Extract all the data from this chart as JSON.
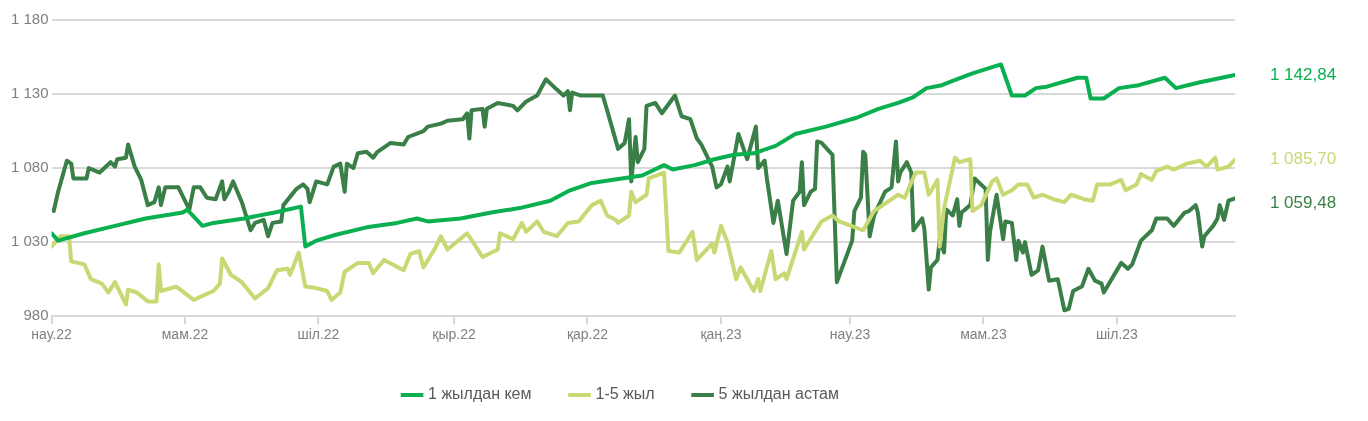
{
  "chart_data": {
    "type": "line",
    "xlim": [
      "2022-03-01",
      "2023-08-24"
    ],
    "xticks": [
      {
        "value": "2022-03-01",
        "label": "нау.22"
      },
      {
        "value": "2022-05-01",
        "label": "мам.22"
      },
      {
        "value": "2022-07-01",
        "label": "шіл.22"
      },
      {
        "value": "2022-09-01",
        "label": "қыр.22"
      },
      {
        "value": "2022-11-01",
        "label": "қар.22"
      },
      {
        "value": "2023-01-01",
        "label": "қаң.23"
      },
      {
        "value": "2023-03-01",
        "label": "нау.23"
      },
      {
        "value": "2023-05-01",
        "label": "мам.23"
      },
      {
        "value": "2023-07-01",
        "label": "шіл.23"
      }
    ],
    "ylim": [
      980,
      1180
    ],
    "yticks": [
      {
        "value": 980,
        "label": "980"
      },
      {
        "value": 1030,
        "label": "1 030"
      },
      {
        "value": 1080,
        "label": "1 080"
      },
      {
        "value": 1130,
        "label": "1 130"
      },
      {
        "value": 1180,
        "label": "1 180"
      }
    ],
    "grid": "y",
    "legend": "bottom",
    "marker": "none",
    "line_style": "solid",
    "annotations": [
      {
        "text": "1 142,84",
        "x": "2023-08-24",
        "y": 1142.84
      },
      {
        "text": "1 085,70",
        "x": "2023-08-24",
        "y": 1085.7
      },
      {
        "text": "1 059,48",
        "x": "2023-08-24",
        "y": 1059.48
      }
    ],
    "series": [
      {
        "name": "1 жылдан кем",
        "color": "#0ab04f",
        "x": [
          "2022-03-01",
          "2022-03-04",
          "2022-03-16",
          "2022-03-30",
          "2022-04-13",
          "2022-04-30",
          "2022-05-02",
          "2022-05-09",
          "2022-05-14",
          "2022-05-28",
          "2022-06-11",
          "2022-06-23",
          "2022-06-25",
          "2022-06-30",
          "2022-07-09",
          "2022-07-23",
          "2022-08-06",
          "2022-08-15",
          "2022-08-20",
          "2022-09-04",
          "2022-09-18",
          "2022-10-01",
          "2022-10-15",
          "2022-10-24",
          "2022-11-03",
          "2022-11-12",
          "2022-11-26",
          "2022-12-06",
          "2022-12-10",
          "2022-12-20",
          "2022-12-29",
          "2023-01-07",
          "2023-01-16",
          "2023-01-26",
          "2023-02-04",
          "2023-02-18",
          "2023-03-04",
          "2023-03-14",
          "2023-03-23",
          "2023-03-30",
          "2023-04-05",
          "2023-04-12",
          "2023-04-19",
          "2023-04-26",
          "2023-05-09",
          "2023-05-14",
          "2023-05-20",
          "2023-05-25",
          "2023-05-30",
          "2023-06-13",
          "2023-06-17",
          "2023-06-19",
          "2023-06-25",
          "2023-07-02",
          "2023-07-11",
          "2023-07-23",
          "2023-07-28",
          "2023-08-08",
          "2023-08-18",
          "2023-08-24"
        ],
        "values": [
          1036,
          1031,
          1036,
          1041,
          1046,
          1050,
          1052,
          1041,
          1043,
          1046,
          1050,
          1054,
          1027,
          1031,
          1035,
          1040,
          1043,
          1046,
          1044,
          1046,
          1050,
          1053,
          1058,
          1065,
          1070,
          1072,
          1075,
          1082,
          1079,
          1082,
          1086,
          1089,
          1090,
          1095,
          1103,
          1108,
          1114,
          1120,
          1124,
          1128,
          1134,
          1136,
          1140,
          1144,
          1150,
          1129,
          1129,
          1134,
          1135,
          1141,
          1141,
          1127,
          1127,
          1134,
          1136,
          1141,
          1134,
          1138,
          1141,
          1142.84
        ]
      },
      {
        "name": "1-5 жыл",
        "color": "#c8d872",
        "x": [
          "2022-03-01",
          "2022-03-05",
          "2022-03-09",
          "2022-03-10",
          "2022-03-16",
          "2022-03-19",
          "2022-03-24",
          "2022-03-27",
          "2022-03-30",
          "2022-04-04",
          "2022-04-05",
          "2022-04-09",
          "2022-04-14",
          "2022-04-18",
          "2022-04-19",
          "2022-04-20",
          "2022-04-27",
          "2022-05-05",
          "2022-05-14",
          "2022-05-17",
          "2022-05-18",
          "2022-05-22",
          "2022-05-27",
          "2022-06-02",
          "2022-06-08",
          "2022-06-12",
          "2022-06-17",
          "2022-06-18",
          "2022-06-22",
          "2022-06-25",
          "2022-06-30",
          "2022-07-05",
          "2022-07-07",
          "2022-07-11",
          "2022-07-13",
          "2022-07-19",
          "2022-07-24",
          "2022-07-26",
          "2022-07-31",
          "2022-08-09",
          "2022-08-12",
          "2022-08-16",
          "2022-08-18",
          "2022-08-23",
          "2022-08-26",
          "2022-08-29",
          "2022-09-07",
          "2022-09-14",
          "2022-09-21",
          "2022-09-22",
          "2022-09-28",
          "2022-10-02",
          "2022-10-04",
          "2022-10-09",
          "2022-10-12",
          "2022-10-18",
          "2022-10-23",
          "2022-10-28",
          "2022-11-03",
          "2022-11-07",
          "2022-11-10",
          "2022-11-14",
          "2022-11-15",
          "2022-11-20",
          "2022-11-21",
          "2022-11-23",
          "2022-11-28",
          "2022-11-29",
          "2022-12-06",
          "2022-12-08",
          "2022-12-13",
          "2022-12-19",
          "2022-12-21",
          "2022-12-28",
          "2022-12-29",
          "2023-01-01",
          "2023-01-04",
          "2023-01-08",
          "2023-01-10",
          "2023-01-16",
          "2023-01-18",
          "2023-01-19",
          "2023-01-24",
          "2023-01-26",
          "2023-01-30",
          "2023-01-31",
          "2023-02-07",
          "2023-02-08",
          "2023-02-16",
          "2023-02-21",
          "2023-02-24",
          "2023-03-07",
          "2023-03-12",
          "2023-03-23",
          "2023-03-26",
          "2023-03-31",
          "2023-04-04",
          "2023-04-06",
          "2023-04-10",
          "2023-04-11",
          "2023-04-13",
          "2023-04-18",
          "2023-04-20",
          "2023-04-25",
          "2023-04-26",
          "2023-04-30",
          "2023-05-05",
          "2023-05-07",
          "2023-05-10",
          "2023-05-14",
          "2023-05-17",
          "2023-05-21",
          "2023-05-24",
          "2023-05-28",
          "2023-06-02",
          "2023-06-07",
          "2023-06-10",
          "2023-06-16",
          "2023-06-20",
          "2023-06-22",
          "2023-06-28",
          "2023-07-03",
          "2023-07-05",
          "2023-07-10",
          "2023-07-12",
          "2023-07-17",
          "2023-07-19",
          "2023-07-24",
          "2023-07-27",
          "2023-08-02",
          "2023-08-08",
          "2023-08-11",
          "2023-08-15",
          "2023-08-16",
          "2023-08-21",
          "2023-08-24"
        ],
        "values": [
          1027,
          1034,
          1034,
          1017,
          1015,
          1005,
          1002,
          996,
          1003,
          988,
          998,
          996,
          990,
          990,
          1015,
          997,
          1000,
          991,
          997,
          1002,
          1019,
          1008,
          1003,
          992,
          999,
          1011,
          1012,
          1008,
          1023,
          1000,
          999,
          997,
          991,
          996,
          1010,
          1016,
          1016,
          1009,
          1018,
          1011,
          1022,
          1024,
          1013,
          1025,
          1034,
          1025,
          1036,
          1020,
          1025,
          1036,
          1032,
          1043,
          1037,
          1044,
          1037,
          1034,
          1043,
          1044,
          1055,
          1058,
          1048,
          1045,
          1043,
          1048,
          1064,
          1057,
          1062,
          1073,
          1077,
          1024,
          1023,
          1037,
          1018,
          1029,
          1023,
          1041,
          1030,
          1005,
          1013,
          997,
          1005,
          997,
          1024,
          1005,
          1009,
          1005,
          1037,
          1025,
          1044,
          1048,
          1044,
          1038,
          1051,
          1062,
          1060,
          1077,
          1077,
          1062,
          1072,
          1027,
          1053,
          1087,
          1084,
          1086,
          1051,
          1055,
          1071,
          1073,
          1062,
          1065,
          1069,
          1069,
          1060,
          1062,
          1059,
          1057,
          1062,
          1059,
          1058,
          1069,
          1069,
          1072,
          1065,
          1069,
          1076,
          1072,
          1078,
          1081,
          1079,
          1083,
          1085,
          1081,
          1087,
          1079,
          1081,
          1085.7
        ]
      },
      {
        "name": "5 жылдан астам",
        "color": "#3a7f47",
        "x": [
          "2022-03-02",
          "2022-03-04",
          "2022-03-08",
          "2022-03-10",
          "2022-03-11",
          "2022-03-17",
          "2022-03-18",
          "2022-03-23",
          "2022-03-28",
          "2022-03-30",
          "2022-03-31",
          "2022-04-04",
          "2022-04-05",
          "2022-04-08",
          "2022-04-11",
          "2022-04-14",
          "2022-04-17",
          "2022-04-19",
          "2022-04-20",
          "2022-04-22",
          "2022-04-28",
          "2022-05-03",
          "2022-05-05",
          "2022-05-08",
          "2022-05-11",
          "2022-05-15",
          "2022-05-18",
          "2022-05-19",
          "2022-05-21",
          "2022-05-23",
          "2022-05-27",
          "2022-05-31",
          "2022-06-02",
          "2022-06-06",
          "2022-06-08",
          "2022-06-10",
          "2022-06-14",
          "2022-06-15",
          "2022-06-21",
          "2022-06-24",
          "2022-06-26",
          "2022-06-27",
          "2022-06-30",
          "2022-07-05",
          "2022-07-08",
          "2022-07-11",
          "2022-07-13",
          "2022-07-14",
          "2022-07-17",
          "2022-07-19",
          "2022-07-23",
          "2022-07-26",
          "2022-07-28",
          "2022-08-03",
          "2022-08-09",
          "2022-08-11",
          "2022-08-18",
          "2022-08-20",
          "2022-08-26",
          "2022-08-29",
          "2022-09-05",
          "2022-09-07",
          "2022-09-08",
          "2022-09-09",
          "2022-09-14",
          "2022-09-15",
          "2022-09-16",
          "2022-09-21",
          "2022-09-28",
          "2022-09-30",
          "2022-10-04",
          "2022-10-09",
          "2022-10-13",
          "2022-10-18",
          "2022-10-21",
          "2022-10-23",
          "2022-10-24",
          "2022-10-25",
          "2022-10-29",
          "2022-11-01",
          "2022-11-06",
          "2022-11-08",
          "2022-11-10",
          "2022-11-15",
          "2022-11-18",
          "2022-11-20",
          "2022-11-21",
          "2022-11-23",
          "2022-11-24",
          "2022-11-27",
          "2022-11-28",
          "2022-12-02",
          "2022-12-05",
          "2022-12-11",
          "2022-12-14",
          "2022-12-18",
          "2022-12-21",
          "2022-12-23",
          "2022-12-28",
          "2022-12-30",
          "2023-01-01",
          "2023-01-04",
          "2023-01-05",
          "2023-01-09",
          "2023-01-13",
          "2023-01-17",
          "2023-01-18",
          "2023-01-21",
          "2023-01-22",
          "2023-01-25",
          "2023-01-27",
          "2023-01-31",
          "2023-02-03",
          "2023-02-06",
          "2023-02-07",
          "2023-02-08",
          "2023-02-11",
          "2023-02-13",
          "2023-02-14",
          "2023-02-16",
          "2023-02-21",
          "2023-02-23",
          "2023-03-02",
          "2023-03-03",
          "2023-03-06",
          "2023-03-07",
          "2023-03-08",
          "2023-03-10",
          "2023-03-12",
          "2023-03-17",
          "2023-03-20",
          "2023-03-22",
          "2023-03-23",
          "2023-03-24",
          "2023-03-27",
          "2023-03-29",
          "2023-03-30",
          "2023-04-03",
          "2023-04-04",
          "2023-04-06",
          "2023-04-07",
          "2023-04-10",
          "2023-04-11",
          "2023-04-13",
          "2023-04-14",
          "2023-04-17",
          "2023-04-19",
          "2023-04-20",
          "2023-04-21",
          "2023-04-25",
          "2023-04-27",
          "2023-05-02",
          "2023-05-03",
          "2023-05-04",
          "2023-05-07",
          "2023-05-10",
          "2023-05-11",
          "2023-05-14",
          "2023-05-16",
          "2023-05-17",
          "2023-05-19",
          "2023-05-20",
          "2023-05-23",
          "2023-05-26",
          "2023-05-28",
          "2023-05-31",
          "2023-06-04",
          "2023-06-07",
          "2023-06-09",
          "2023-06-11",
          "2023-06-15",
          "2023-06-18",
          "2023-06-21",
          "2023-06-24",
          "2023-06-25",
          "2023-07-03",
          "2023-07-06",
          "2023-07-08",
          "2023-07-12",
          "2023-07-17",
          "2023-07-19",
          "2023-07-24",
          "2023-07-27",
          "2023-08-01",
          "2023-08-03",
          "2023-08-06",
          "2023-08-07",
          "2023-08-09",
          "2023-08-10",
          "2023-08-14",
          "2023-08-16",
          "2023-08-17",
          "2023-08-19",
          "2023-08-21",
          "2023-08-24"
        ],
        "values": [
          1051,
          1064,
          1085,
          1083,
          1073,
          1073,
          1080,
          1077,
          1084,
          1081,
          1086,
          1087,
          1096,
          1081,
          1072,
          1055,
          1057,
          1067,
          1055,
          1067,
          1067,
          1052,
          1067,
          1067,
          1060,
          1059,
          1071,
          1059,
          1064,
          1071,
          1057,
          1038,
          1043,
          1045,
          1034,
          1043,
          1044,
          1055,
          1066,
          1069,
          1066,
          1057,
          1071,
          1069,
          1081,
          1083,
          1064,
          1083,
          1080,
          1090,
          1091,
          1087,
          1091,
          1097,
          1096,
          1101,
          1105,
          1108,
          1110,
          1112,
          1113,
          1117,
          1100,
          1119,
          1120,
          1108,
          1120,
          1124,
          1122,
          1119,
          1125,
          1129,
          1140,
          1133,
          1129,
          1132,
          1119,
          1131,
          1129,
          1129,
          1129,
          1129,
          1119,
          1093,
          1097,
          1113,
          1071,
          1101,
          1084,
          1093,
          1122,
          1124,
          1117,
          1129,
          1115,
          1113,
          1100,
          1096,
          1081,
          1067,
          1069,
          1081,
          1071,
          1103,
          1086,
          1108,
          1080,
          1085,
          1073,
          1043,
          1058,
          1022,
          1058,
          1064,
          1084,
          1055,
          1064,
          1066,
          1098,
          1097,
          1089,
          1003,
          1031,
          1051,
          1060,
          1091,
          1089,
          1034,
          1048,
          1064,
          1067,
          1098,
          1071,
          1077,
          1084,
          1077,
          1038,
          1046,
          1039,
          998,
          1013,
          1018,
          1032,
          1023,
          1052,
          1048,
          1059,
          1041,
          1050,
          1055,
          1073,
          1066,
          1018,
          1037,
          1062,
          1032,
          1044,
          1043,
          1018,
          1031,
          1023,
          1030,
          1008,
          1011,
          1027,
          1004,
          1005,
          984,
          985,
          997,
          1000,
          1012,
          1004,
          1002,
          996,
          1016,
          1012,
          1015,
          1031,
          1038,
          1046,
          1046,
          1041,
          1050,
          1051,
          1055,
          1050,
          1027,
          1034,
          1041,
          1046,
          1055,
          1045,
          1058,
          1059.48
        ]
      }
    ]
  }
}
